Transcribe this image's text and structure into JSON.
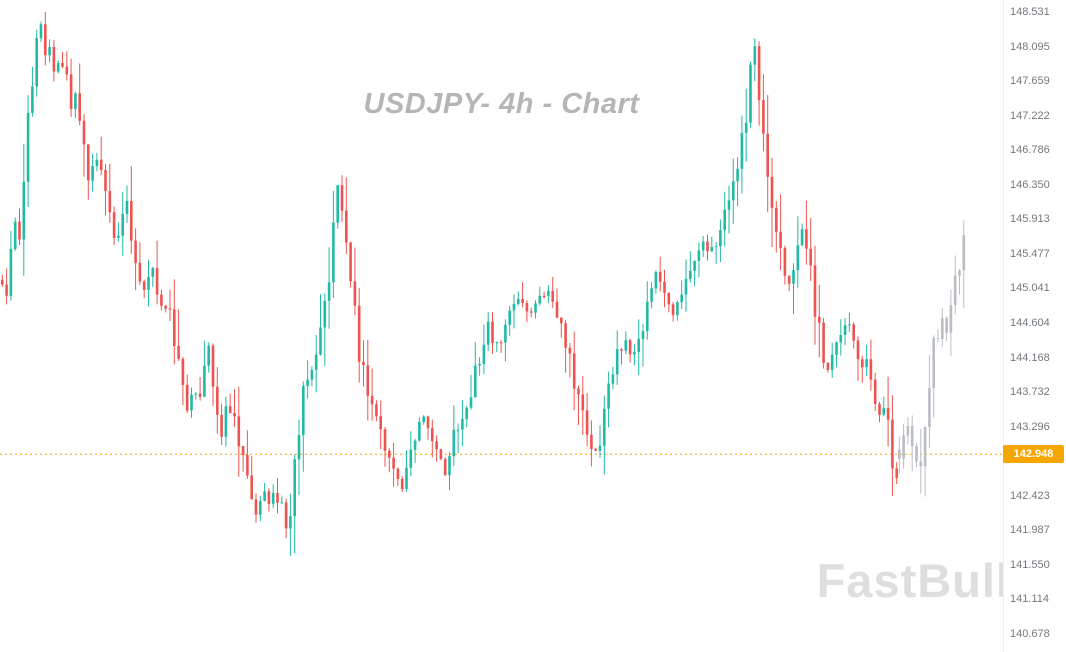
{
  "chart": {
    "title": "USDJPY- 4h - Chart",
    "watermark": "FastBull",
    "current_price_label": "142.948"
  },
  "chart_data": {
    "type": "candlestick",
    "symbol": "USDJPY",
    "timeframe": "4h",
    "title": "USDJPY- 4h - Chart",
    "current_price": 142.948,
    "y_axis_ticks": [
      "148.531",
      "148.095",
      "147.659",
      "147.222",
      "146.786",
      "146.350",
      "145.913",
      "145.477",
      "145.041",
      "144.604",
      "144.168",
      "143.732",
      "143.296",
      "142.423",
      "141.987",
      "141.550",
      "141.114",
      "140.678"
    ],
    "legend_position": "none",
    "grid": "off",
    "colors": {
      "up": "#21baa4",
      "down": "#ef5350",
      "inactive": "#b9bec4",
      "price_line": "#f7a600",
      "price_label_text": "#ffffff"
    },
    "price_path": [
      [
        0,
        145.2
      ],
      [
        5,
        144.9
      ],
      [
        9,
        145.55
      ],
      [
        13,
        145.9
      ],
      [
        18,
        145.5
      ],
      [
        24,
        146.6
      ],
      [
        30,
        147.7
      ],
      [
        36,
        148.15
      ],
      [
        40,
        148.45
      ],
      [
        44,
        147.9
      ],
      [
        48,
        148.2
      ],
      [
        54,
        147.65
      ],
      [
        58,
        148.0
      ],
      [
        64,
        147.8
      ],
      [
        70,
        147.35
      ],
      [
        76,
        147.5
      ],
      [
        82,
        146.9
      ],
      [
        88,
        146.35
      ],
      [
        93,
        146.6
      ],
      [
        98,
        146.8
      ],
      [
        104,
        146.3
      ],
      [
        110,
        145.9
      ],
      [
        116,
        145.6
      ],
      [
        121,
        146.0
      ],
      [
        126,
        146.2
      ],
      [
        132,
        145.6
      ],
      [
        138,
        145.2
      ],
      [
        144,
        145.0
      ],
      [
        150,
        145.4
      ],
      [
        156,
        145.1
      ],
      [
        162,
        144.7
      ],
      [
        167,
        144.95
      ],
      [
        174,
        144.35
      ],
      [
        180,
        143.95
      ],
      [
        186,
        143.5
      ],
      [
        192,
        143.8
      ],
      [
        198,
        143.6
      ],
      [
        204,
        144.0
      ],
      [
        209,
        144.45
      ],
      [
        214,
        143.5
      ],
      [
        220,
        143.2
      ],
      [
        226,
        143.6
      ],
      [
        232,
        143.4
      ],
      [
        238,
        143.0
      ],
      [
        244,
        142.7
      ],
      [
        250,
        142.4
      ],
      [
        256,
        142.15
      ],
      [
        262,
        142.55
      ],
      [
        268,
        142.25
      ],
      [
        274,
        142.5
      ],
      [
        280,
        142.25
      ],
      [
        286,
        141.95
      ],
      [
        292,
        142.6
      ],
      [
        298,
        143.3
      ],
      [
        304,
        143.8
      ],
      [
        310,
        144.0
      ],
      [
        316,
        144.3
      ],
      [
        322,
        144.7
      ],
      [
        328,
        145.2
      ],
      [
        333,
        146.1
      ],
      [
        337,
        146.4
      ],
      [
        342,
        145.7
      ],
      [
        348,
        145.2
      ],
      [
        354,
        144.6
      ],
      [
        360,
        144.1
      ],
      [
        366,
        143.8
      ],
      [
        372,
        143.5
      ],
      [
        378,
        143.2
      ],
      [
        384,
        142.95
      ],
      [
        390,
        142.8
      ],
      [
        396,
        142.6
      ],
      [
        402,
        142.55
      ],
      [
        408,
        142.8
      ],
      [
        414,
        143.1
      ],
      [
        420,
        143.5
      ],
      [
        426,
        143.3
      ],
      [
        432,
        143.15
      ],
      [
        438,
        142.9
      ],
      [
        444,
        142.7
      ],
      [
        450,
        143.0
      ],
      [
        456,
        143.3
      ],
      [
        462,
        143.5
      ],
      [
        468,
        143.7
      ],
      [
        474,
        143.95
      ],
      [
        480,
        144.2
      ],
      [
        486,
        144.6
      ],
      [
        492,
        144.4
      ],
      [
        498,
        144.3
      ],
      [
        504,
        144.55
      ],
      [
        510,
        144.7
      ],
      [
        516,
        144.95
      ],
      [
        522,
        144.8
      ],
      [
        528,
        144.65
      ],
      [
        534,
        144.85
      ],
      [
        540,
        144.95
      ],
      [
        546,
        145.05
      ],
      [
        552,
        144.9
      ],
      [
        558,
        144.7
      ],
      [
        564,
        144.4
      ],
      [
        570,
        144.1
      ],
      [
        576,
        143.7
      ],
      [
        582,
        143.4
      ],
      [
        588,
        143.15
      ],
      [
        594,
        142.95
      ],
      [
        600,
        143.2
      ],
      [
        606,
        143.6
      ],
      [
        612,
        144.0
      ],
      [
        618,
        144.25
      ],
      [
        624,
        144.4
      ],
      [
        630,
        144.15
      ],
      [
        636,
        144.3
      ],
      [
        642,
        144.6
      ],
      [
        648,
        145.0
      ],
      [
        654,
        145.25
      ],
      [
        660,
        145.05
      ],
      [
        666,
        144.85
      ],
      [
        672,
        144.7
      ],
      [
        678,
        144.9
      ],
      [
        684,
        145.1
      ],
      [
        690,
        145.3
      ],
      [
        696,
        145.5
      ],
      [
        702,
        145.65
      ],
      [
        708,
        145.5
      ],
      [
        714,
        145.6
      ],
      [
        720,
        145.85
      ],
      [
        726,
        146.1
      ],
      [
        732,
        146.35
      ],
      [
        738,
        146.8
      ],
      [
        744,
        147.2
      ],
      [
        750,
        147.8
      ],
      [
        754,
        148.05
      ],
      [
        758,
        147.4
      ],
      [
        762,
        146.9
      ],
      [
        766,
        146.5
      ],
      [
        770,
        146.2
      ],
      [
        774,
        145.9
      ],
      [
        778,
        145.6
      ],
      [
        782,
        145.3
      ],
      [
        786,
        145.05
      ],
      [
        790,
        145.15
      ],
      [
        794,
        145.35
      ],
      [
        798,
        145.7
      ],
      [
        802,
        145.85
      ],
      [
        806,
        145.5
      ],
      [
        810,
        145.1
      ],
      [
        814,
        144.75
      ],
      [
        818,
        144.45
      ],
      [
        822,
        144.15
      ],
      [
        826,
        143.95
      ],
      [
        830,
        144.2
      ],
      [
        836,
        144.45
      ],
      [
        842,
        144.55
      ],
      [
        848,
        144.65
      ],
      [
        852,
        144.45
      ],
      [
        856,
        144.25
      ],
      [
        860,
        144.0
      ],
      [
        864,
        144.15
      ],
      [
        868,
        143.95
      ],
      [
        872,
        143.75
      ],
      [
        876,
        143.55
      ],
      [
        880,
        143.4
      ],
      [
        884,
        143.55
      ],
      [
        888,
        143.25
      ],
      [
        892,
        142.8
      ],
      [
        895,
        142.6
      ],
      [
        898,
        142.95
      ]
    ],
    "inactive_path": [
      [
        898,
        142.95
      ],
      [
        902,
        143.1
      ],
      [
        906,
        143.3
      ],
      [
        910,
        143.15
      ],
      [
        914,
        142.85
      ],
      [
        918,
        142.65
      ],
      [
        922,
        143.1
      ],
      [
        926,
        143.7
      ],
      [
        930,
        144.2
      ],
      [
        934,
        144.55
      ],
      [
        938,
        144.4
      ],
      [
        942,
        144.7
      ],
      [
        946,
        144.55
      ],
      [
        950,
        144.85
      ],
      [
        954,
        145.05
      ],
      [
        958,
        145.3
      ],
      [
        962,
        145.8
      ],
      [
        966,
        146.4
      ]
    ]
  }
}
